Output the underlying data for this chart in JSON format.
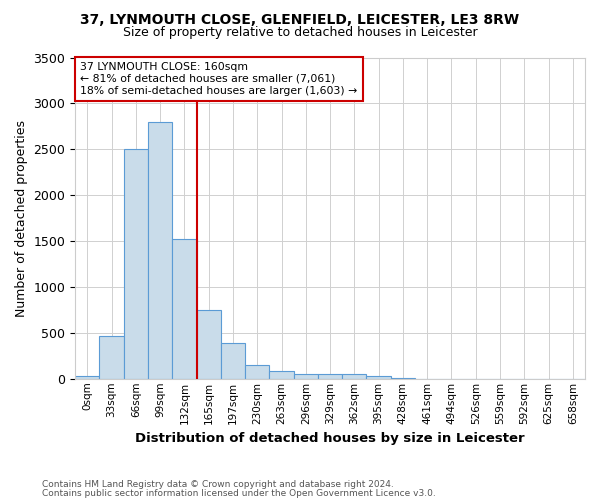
{
  "title1": "37, LYNMOUTH CLOSE, GLENFIELD, LEICESTER, LE3 8RW",
  "title2": "Size of property relative to detached houses in Leicester",
  "xlabel": "Distribution of detached houses by size in Leicester",
  "ylabel": "Number of detached properties",
  "footnote1": "Contains HM Land Registry data © Crown copyright and database right 2024.",
  "footnote2": "Contains public sector information licensed under the Open Government Licence v3.0.",
  "annotation_line1": "37 LYNMOUTH CLOSE: 160sqm",
  "annotation_line2": "← 81% of detached houses are smaller (7,061)",
  "annotation_line3": "18% of semi-detached houses are larger (1,603) →",
  "bin_labels": [
    "0sqm",
    "33sqm",
    "66sqm",
    "99sqm",
    "132sqm",
    "165sqm",
    "197sqm",
    "230sqm",
    "263sqm",
    "296sqm",
    "329sqm",
    "362sqm",
    "395sqm",
    "428sqm",
    "461sqm",
    "494sqm",
    "526sqm",
    "559sqm",
    "592sqm",
    "625sqm",
    "658sqm"
  ],
  "bar_values": [
    30,
    470,
    2500,
    2800,
    1520,
    750,
    390,
    150,
    80,
    55,
    55,
    50,
    25,
    10,
    0,
    0,
    0,
    0,
    0,
    0,
    0
  ],
  "bar_color": "#c9dcea",
  "bar_edge_color": "#5b9bd5",
  "vline_position": 4.5,
  "vline_color": "#cc0000",
  "annotation_box_edge": "#cc0000",
  "ylim": [
    0,
    3500
  ],
  "yticks": [
    0,
    500,
    1000,
    1500,
    2000,
    2500,
    3000,
    3500
  ],
  "background_color": "#ffffff",
  "grid_color": "#d0d0d0"
}
